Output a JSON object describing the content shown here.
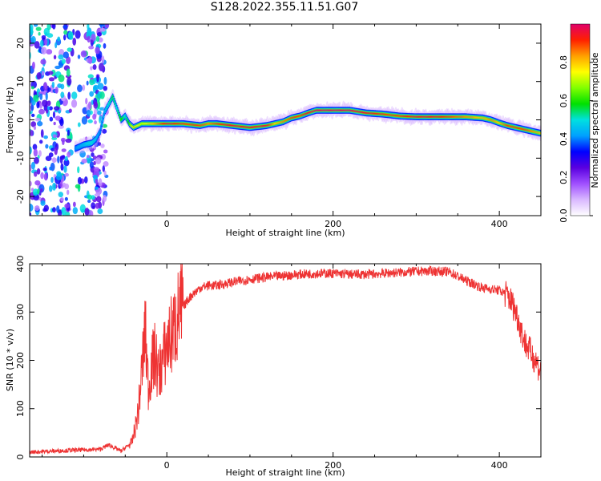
{
  "title": "S128.2022.355.11.51.G07",
  "colors": {
    "snr_line": "#ee3333",
    "axes": "#000000"
  },
  "chart_data": [
    {
      "type": "heatmap",
      "xlabel": "Height of straight line (km)",
      "ylabel": "Frequency (Hz)",
      "xlim": [
        -165,
        450
      ],
      "ylim": [
        -25,
        25
      ],
      "x_ticks": [
        0,
        200,
        400
      ],
      "y_ticks": [
        -20,
        -10,
        0,
        10,
        20
      ],
      "colorbar": {
        "label": "Normalized spectral amplitude",
        "range": [
          0,
          1
        ],
        "ticks": [
          "0.0",
          "0.2",
          "0.4",
          "0.6",
          "0.8"
        ],
        "colors": [
          "#ffffff",
          "#d9b8ff",
          "#a050ff",
          "#5a00e0",
          "#0000ff",
          "#00a0ff",
          "#00e0e0",
          "#00e000",
          "#80ff00",
          "#ffff00",
          "#ffa000",
          "#ff2000",
          "#e0006a"
        ]
      },
      "ridge": {
        "height_km": [
          -110,
          -100,
          -90,
          -85,
          -80,
          -75,
          -70,
          -65,
          -60,
          -55,
          -50,
          -45,
          -40,
          -30,
          0,
          20,
          40,
          50,
          60,
          80,
          100,
          120,
          130,
          140,
          150,
          160,
          170,
          180,
          200,
          220,
          240,
          260,
          280,
          300,
          320,
          340,
          360,
          380,
          390,
          400,
          410,
          420,
          430,
          440,
          450
        ],
        "frequency_hz": [
          -7.5,
          -6.5,
          -6,
          -5,
          -3,
          2,
          4,
          6,
          3,
          0,
          1,
          -1,
          -2,
          -1,
          -1,
          -1,
          -1.5,
          -1,
          -1,
          -1.5,
          -2,
          -1.5,
          -1,
          -0.5,
          0.5,
          1,
          1.8,
          2.5,
          2.5,
          2.5,
          1.8,
          1.5,
          1,
          0.8,
          0.8,
          0.8,
          0.8,
          0.5,
          0,
          -0.8,
          -1.5,
          -2,
          -2.5,
          -3,
          -3.5
        ],
        "amplitude": [
          0.4,
          0.45,
          0.5,
          0.45,
          0.4,
          0.45,
          0.5,
          0.55,
          0.5,
          0.6,
          0.5,
          0.6,
          0.8,
          0.7,
          0.95,
          0.9,
          0.9,
          0.85,
          0.9,
          0.95,
          0.95,
          0.95,
          0.8,
          0.85,
          0.9,
          0.9,
          0.95,
          1.0,
          1.0,
          1.0,
          0.95,
          0.9,
          0.9,
          0.95,
          0.95,
          0.9,
          0.85,
          0.8,
          0.85,
          0.8,
          0.9,
          0.9,
          0.9,
          0.85,
          0.8
        ]
      },
      "noise_region_km": [
        -165,
        -72
      ]
    },
    {
      "type": "line",
      "xlabel": "Height of straight line (km)",
      "ylabel": "SNR (10 * v/v)",
      "xlim": [
        -165,
        450
      ],
      "ylim": [
        0,
        400
      ],
      "x_ticks": [
        0,
        200,
        400
      ],
      "y_ticks": [
        0,
        100,
        200,
        300,
        400
      ],
      "series": [
        {
          "height_km": [
            -165,
            -140,
            -110,
            -80,
            -70,
            -55,
            -42,
            -38,
            -34,
            -30,
            -26,
            -22,
            -18,
            -14,
            -10,
            -5,
            0,
            5,
            10,
            15,
            20,
            25,
            30,
            40,
            50,
            60,
            80,
            100,
            120,
            140,
            160,
            180,
            200,
            220,
            240,
            260,
            280,
            300,
            320,
            340,
            360,
            380,
            400,
            410,
            415,
            420,
            425,
            430,
            435,
            440,
            445,
            450
          ],
          "snr": [
            10,
            12,
            14,
            16,
            25,
            12,
            30,
            60,
            100,
            180,
            260,
            140,
            190,
            210,
            170,
            200,
            230,
            250,
            270,
            300,
            310,
            325,
            335,
            350,
            355,
            355,
            362,
            368,
            372,
            375,
            378,
            380,
            380,
            378,
            378,
            380,
            382,
            384,
            385,
            383,
            365,
            350,
            345,
            335,
            320,
            300,
            270,
            240,
            225,
            210,
            195,
            175
          ]
        }
      ]
    }
  ]
}
